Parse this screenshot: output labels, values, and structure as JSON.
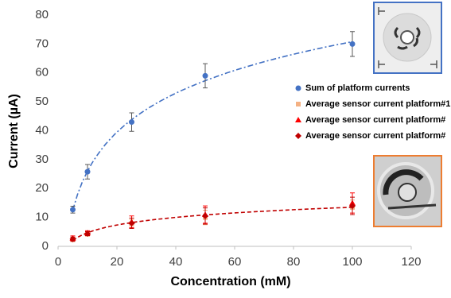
{
  "chart_data": {
    "type": "scatter",
    "x_label": "Concentration (mM)",
    "y_label": "Current (µA)",
    "xlim": [
      0,
      120
    ],
    "xticks": [
      0,
      20,
      40,
      60,
      80,
      100,
      120
    ],
    "ylim": [
      0,
      80
    ],
    "yticks": [
      0,
      10,
      20,
      30,
      40,
      50,
      60,
      70,
      80
    ],
    "grid": false,
    "series": [
      {
        "name": "Sum of platform currents",
        "color": "#4472c4",
        "marker": "circle",
        "trendline": "log",
        "x": [
          5,
          10,
          25,
          50,
          100
        ],
        "values": [
          12.7,
          25.8,
          43,
          59,
          70
        ],
        "errors": [
          1.2,
          2.5,
          3.2,
          4.2,
          4.3
        ]
      },
      {
        "name": "Average sensor current platform#1",
        "color": "#f4b183",
        "marker": "square",
        "x": [
          5,
          10,
          25,
          50,
          100
        ],
        "values": [
          2.3,
          4.2,
          7.8,
          10.0,
          13.5
        ],
        "errors": [
          0.6,
          0.6,
          1.5,
          2.5,
          2.5
        ]
      },
      {
        "name": "Average sensor current platform#",
        "color": "#ff0000",
        "marker": "triangle",
        "x": [
          5,
          10,
          25,
          50,
          100
        ],
        "values": [
          2.8,
          4.6,
          8.5,
          11,
          15
        ],
        "errors": [
          0.8,
          0.8,
          2,
          3,
          3.5
        ]
      },
      {
        "name": "Average sensor current platform#",
        "color": "#c00000",
        "marker": "diamond",
        "trendline": "log",
        "x": [
          5,
          10,
          25,
          50,
          100
        ],
        "values": [
          2.5,
          4.4,
          8,
          10.5,
          14
        ],
        "errors": [
          0.7,
          0.7,
          1.8,
          2.8,
          3
        ]
      }
    ]
  }
}
